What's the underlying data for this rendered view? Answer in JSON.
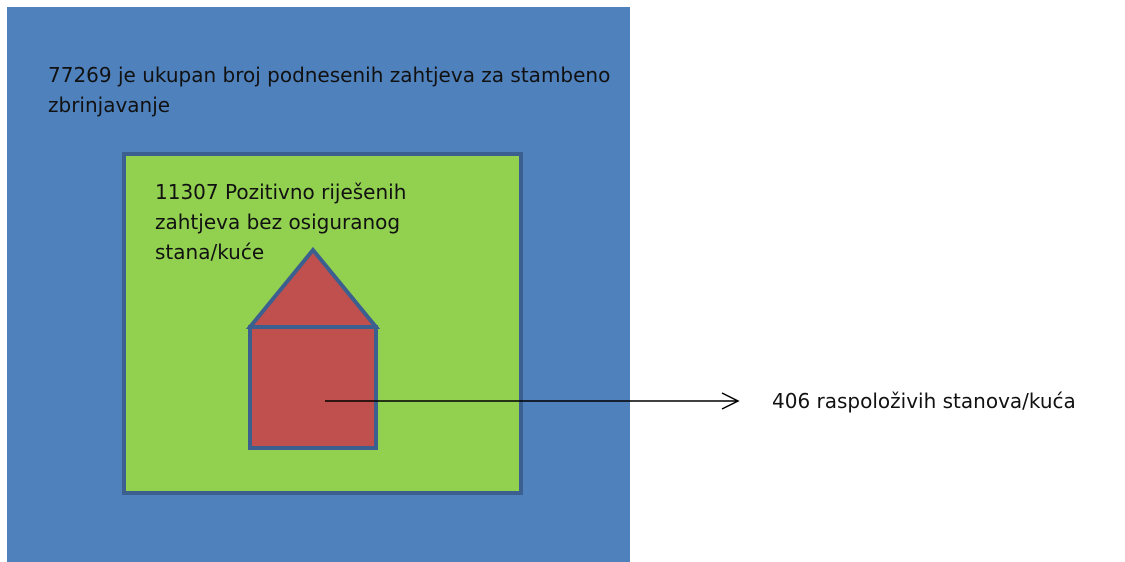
{
  "outer": {
    "label": "77269 je ukupan broj podnesenih  zahtjeva za stambeno  zbrinjavanje"
  },
  "inner": {
    "label": "11307 Pozitivno riješenih zahtjeva bez osiguranog stana/kuće"
  },
  "house": {
    "label": "406 raspoloživih  stanova/kuća"
  }
}
